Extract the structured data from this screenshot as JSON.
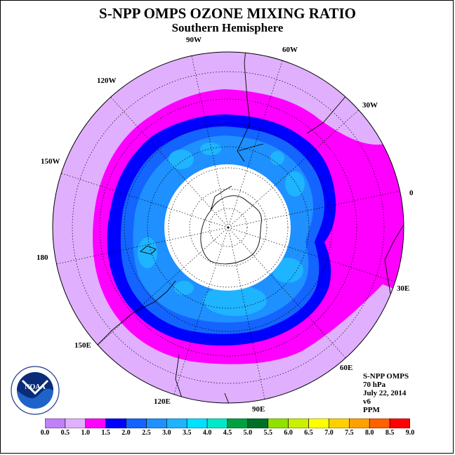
{
  "title": "S-NPP OMPS OZONE MIXING RATIO",
  "subtitle": "Southern Hemisphere",
  "longitude_labels": [
    "90W",
    "60W",
    "30W",
    "0",
    "30E",
    "60E",
    "90E",
    "120E",
    "150E",
    "180",
    "150W",
    "120W"
  ],
  "info": {
    "instrument": "S-NPP OMPS",
    "pressure_level": "70 hPa",
    "date": "July 22, 2014",
    "version": "v6",
    "units": "PPM"
  },
  "logo_text": "NOAA",
  "colorbar": {
    "ticks": [
      "0.0",
      "0.5",
      "1.0",
      "1.5",
      "2.0",
      "2.5",
      "3.0",
      "3.5",
      "4.0",
      "4.5",
      "5.0",
      "5.5",
      "6.0",
      "6.5",
      "7.0",
      "7.5",
      "8.0",
      "8.5",
      "9.0"
    ],
    "colors": [
      "#c080f8",
      "#e0b0ff",
      "#ff00ff",
      "#0000ff",
      "#1464ff",
      "#1e90ff",
      "#1eb4ff",
      "#00e0ff",
      "#00e8c8",
      "#00a040",
      "#007028",
      "#90e000",
      "#c8f000",
      "#ffff00",
      "#ffd000",
      "#ffa000",
      "#ff6000",
      "#ff0000",
      "#8b5a3c"
    ]
  },
  "map_data": {
    "projection": "south-polar-stereographic",
    "no_data_region": "polar night",
    "value_bands": [
      {
        "range": "0.5-1.0",
        "color": "#e0b0ff"
      },
      {
        "range": "1.0-1.5",
        "color": "#ff00ff"
      },
      {
        "range": "1.5-2.0",
        "color": "#0000ff"
      },
      {
        "range": "2.0-2.5",
        "color": "#1464ff"
      },
      {
        "range": "2.5-3.0",
        "color": "#1e90ff"
      },
      {
        "range": "3.0-3.5",
        "color": "#1eb4ff"
      }
    ]
  }
}
